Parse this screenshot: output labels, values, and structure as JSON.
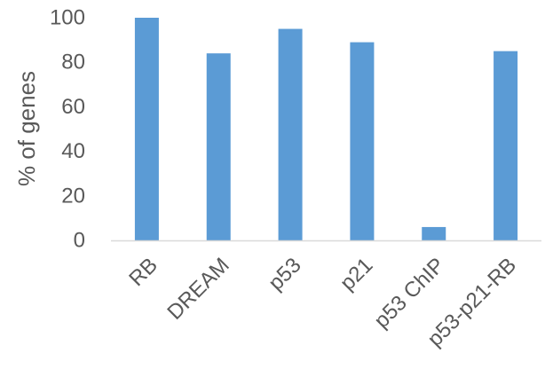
{
  "chart_data": {
    "type": "bar",
    "title": "",
    "xlabel": "",
    "ylabel": "% of genes",
    "ylim": [
      0,
      100
    ],
    "yticks": [
      0,
      20,
      40,
      60,
      80,
      100
    ],
    "grid": false,
    "categories": [
      "RB",
      "DREAM",
      "p53",
      "p21",
      "p53 ChIP",
      "p53-p21-RB"
    ],
    "values": [
      100,
      84,
      95,
      89,
      6,
      85
    ],
    "colors": {
      "bar": "#5b9bd5",
      "axis": "#d9d9d9",
      "text": "#595959"
    }
  }
}
